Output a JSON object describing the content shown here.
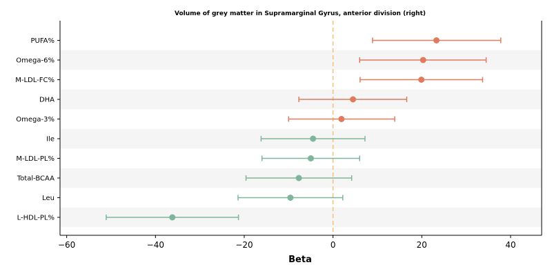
{
  "chart_data": {
    "type": "forest",
    "title": "Volume of grey matter in Supramarginal Gyrus, anterior division (right)",
    "xlabel": "Beta",
    "xlim": [
      -61.5,
      47
    ],
    "xticks": [
      -60,
      -40,
      -20,
      0,
      20,
      40
    ],
    "xtick_labels": [
      "−60",
      "−40",
      "−20",
      "0",
      "20",
      "40"
    ],
    "reference_line": 0,
    "colors": {
      "positive": "#e07b5f",
      "negative": "#7fb59a",
      "reference": "#f5c07a",
      "band": "#f5f5f5"
    },
    "rows": [
      {
        "label": "PUFA%",
        "beta": 23.3,
        "lo": 8.9,
        "hi": 37.8,
        "group": "positive"
      },
      {
        "label": "Omega-6%",
        "beta": 20.3,
        "lo": 6.0,
        "hi": 34.5,
        "group": "positive"
      },
      {
        "label": "M-LDL-FC%",
        "beta": 19.9,
        "lo": 6.1,
        "hi": 33.7,
        "group": "positive"
      },
      {
        "label": "DHA",
        "beta": 4.5,
        "lo": -7.7,
        "hi": 16.6,
        "group": "positive"
      },
      {
        "label": "Omega-3%",
        "beta": 1.9,
        "lo": -10.0,
        "hi": 13.9,
        "group": "positive"
      },
      {
        "label": "Ile",
        "beta": -4.5,
        "lo": -16.2,
        "hi": 7.2,
        "group": "negative"
      },
      {
        "label": "M-LDL-PL%",
        "beta": -5.0,
        "lo": -16.0,
        "hi": 6.0,
        "group": "negative"
      },
      {
        "label": "Total-BCAA",
        "beta": -7.7,
        "lo": -19.6,
        "hi": 4.2,
        "group": "negative"
      },
      {
        "label": "Leu",
        "beta": -9.6,
        "lo": -21.4,
        "hi": 2.2,
        "group": "negative"
      },
      {
        "label": "L-HDL-PL%",
        "beta": -36.2,
        "lo": -51.1,
        "hi": -21.3,
        "group": "negative"
      }
    ]
  }
}
